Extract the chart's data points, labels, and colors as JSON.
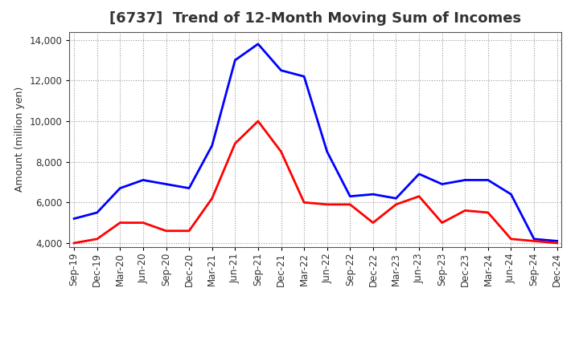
{
  "title": "[6737]  Trend of 12-Month Moving Sum of Incomes",
  "ylabel": "Amount (million yen)",
  "xlabels": [
    "Sep-19",
    "Dec-19",
    "Mar-20",
    "Jun-20",
    "Sep-20",
    "Dec-20",
    "Mar-21",
    "Jun-21",
    "Sep-21",
    "Dec-21",
    "Mar-22",
    "Jun-22",
    "Sep-22",
    "Dec-22",
    "Mar-23",
    "Jun-23",
    "Sep-23",
    "Dec-23",
    "Mar-24",
    "Jun-24",
    "Sep-24",
    "Dec-24"
  ],
  "ordinary_income": [
    5200,
    5500,
    6700,
    7100,
    6900,
    6700,
    8800,
    13000,
    13800,
    12500,
    12200,
    8500,
    6300,
    6400,
    6200,
    7400,
    6900,
    7100,
    7100,
    6400,
    4200,
    4100
  ],
  "net_income": [
    4000,
    4200,
    5000,
    5000,
    4600,
    4600,
    6200,
    8900,
    10000,
    8500,
    6000,
    5900,
    5900,
    5000,
    5900,
    6300,
    5000,
    5600,
    5500,
    4200,
    4100,
    4000
  ],
  "ordinary_color": "#0000FF",
  "net_color": "#FF0000",
  "ylim": [
    3800,
    14400
  ],
  "yticks": [
    4000,
    6000,
    8000,
    10000,
    12000,
    14000
  ],
  "background_color": "#FFFFFF",
  "grid_color": "#999999",
  "title_color": "#333333",
  "linewidth": 2.0,
  "legend_fontsize": 10,
  "tick_fontsize": 8.5,
  "ylabel_fontsize": 9,
  "title_fontsize": 13
}
